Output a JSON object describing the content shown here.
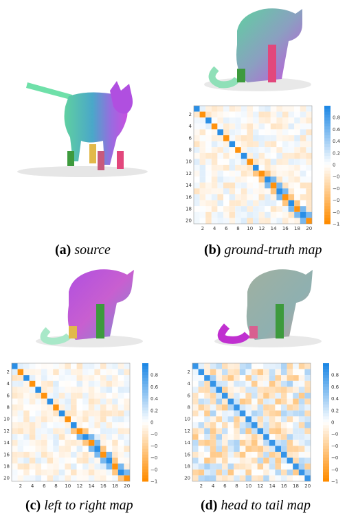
{
  "panels": [
    {
      "key": "a",
      "tag": "(a)",
      "text": "source"
    },
    {
      "key": "b",
      "tag": "(b)",
      "text": "ground-truth map"
    },
    {
      "key": "c",
      "tag": "(c)",
      "text": "left to right map"
    },
    {
      "key": "d",
      "tag": "(d)",
      "text": "head to tail map"
    }
  ],
  "matrix": {
    "size": 20,
    "row_ticks": [
      "2",
      "4",
      "6",
      "8",
      "10",
      "12",
      "14",
      "16",
      "18",
      "20"
    ],
    "col_ticks": [
      "2",
      "4",
      "6",
      "8",
      "10",
      "12",
      "14",
      "16",
      "18",
      "20"
    ],
    "colorbar_ticks": [
      "0.8",
      "0.6",
      "0.4",
      "0.2",
      "0",
      "-0.2",
      "-0.4",
      "-0.6",
      "-0.8",
      "-1"
    ],
    "colorbar_range": [
      -1,
      1
    ],
    "colors": {
      "positive": "#1e88e5",
      "negative": "#ff8c00",
      "zero": "#ffffff"
    }
  }
}
